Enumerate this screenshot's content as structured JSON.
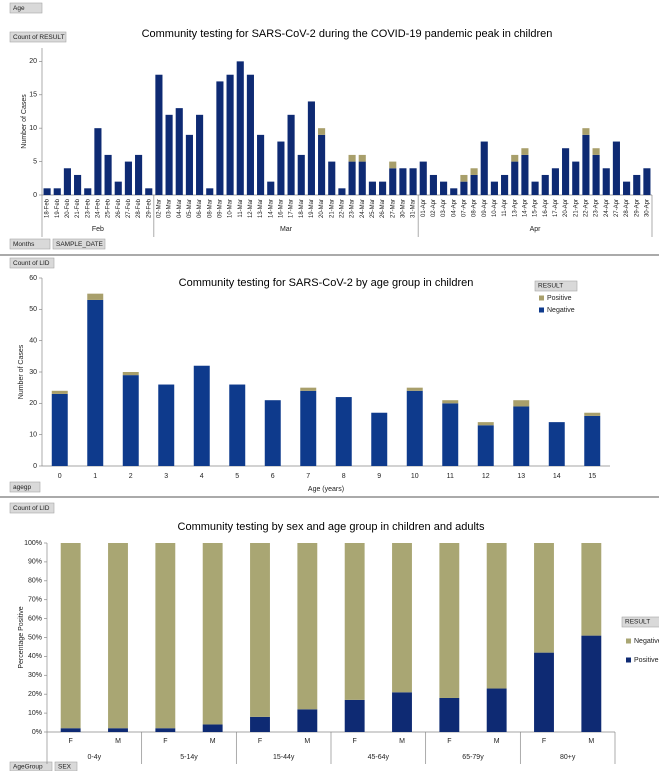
{
  "pivot_buttons": {
    "age": "Age",
    "count_result": "Count of RESULT",
    "months": "Months",
    "sample_date": "SAMPLE_DATE",
    "count_lid_1": "Count of LID",
    "agegp": "agegp",
    "count_lid_2": "Count of LID",
    "agegroup": "AgeGroup",
    "sex": "SEX"
  },
  "chart_data": [
    {
      "type": "bar",
      "stacked": true,
      "title": "Community testing for SARS-CoV-2 during the COVID-19 pandemic peak in children",
      "y_label": "Number of Cases",
      "categories": [
        "18-Feb",
        "19-Feb",
        "20-Feb",
        "21-Feb",
        "23-Feb",
        "24-Feb",
        "25-Feb",
        "26-Feb",
        "27-Feb",
        "28-Feb",
        "29-Feb",
        "02-Mar",
        "03-Mar",
        "04-Mar",
        "05-Mar",
        "06-Mar",
        "08-Mar",
        "09-Mar",
        "10-Mar",
        "11-Mar",
        "12-Mar",
        "13-Mar",
        "14-Mar",
        "16-Mar",
        "17-Mar",
        "18-Mar",
        "19-Mar",
        "20-Mar",
        "21-Mar",
        "22-Mar",
        "23-Mar",
        "24-Mar",
        "25-Mar",
        "26-Mar",
        "27-Mar",
        "30-Mar",
        "31-Mar",
        "01-Apr",
        "02-Apr",
        "03-Apr",
        "04-Apr",
        "07-Apr",
        "08-Apr",
        "09-Apr",
        "10-Apr",
        "11-Apr",
        "13-Apr",
        "14-Apr",
        "15-Apr",
        "16-Apr",
        "17-Apr",
        "20-Apr",
        "21-Apr",
        "22-Apr",
        "23-Apr",
        "24-Apr",
        "27-Apr",
        "28-Apr",
        "29-Apr",
        "30-Apr"
      ],
      "groups": [
        {
          "label": "Feb",
          "span": 11
        },
        {
          "label": "Mar",
          "span": 26
        },
        {
          "label": "Apr",
          "span": 23
        }
      ],
      "series": [
        {
          "color": "#0e2a73",
          "values": [
            1,
            1,
            4,
            3,
            1,
            10,
            6,
            2,
            5,
            6,
            1,
            18,
            12,
            13,
            9,
            12,
            1,
            17,
            18,
            20,
            18,
            9,
            2,
            8,
            12,
            6,
            14,
            9,
            5,
            1,
            5,
            5,
            2,
            2,
            4,
            4,
            4,
            5,
            3,
            2,
            1,
            2,
            3,
            8,
            2,
            3,
            5,
            6,
            2,
            3,
            4,
            7,
            5,
            9,
            6,
            4,
            8,
            2,
            3,
            4
          ]
        },
        {
          "color": "#a89f6b",
          "values": [
            0,
            0,
            0,
            0,
            0,
            0,
            0,
            0,
            0,
            0,
            0,
            0,
            0,
            0,
            0,
            0,
            0,
            0,
            0,
            0,
            0,
            0,
            0,
            0,
            0,
            0,
            0,
            1,
            0,
            0,
            1,
            1,
            0,
            0,
            1,
            0,
            0,
            0,
            0,
            0,
            0,
            1,
            1,
            0,
            0,
            0,
            1,
            1,
            0,
            0,
            0,
            0,
            0,
            1,
            1,
            0,
            0,
            0,
            0,
            0
          ]
        }
      ],
      "ylim": [
        0,
        22
      ],
      "yticks": [
        0,
        5,
        10,
        15,
        20
      ]
    },
    {
      "type": "bar",
      "stacked": true,
      "title": "Community testing for SARS-CoV-2 by age group in children",
      "y_label": "Number of Cases",
      "x_label": "Age (years)",
      "legend_title": "RESULT",
      "categories": [
        "0",
        "1",
        "2",
        "3",
        "4",
        "5",
        "6",
        "7",
        "8",
        "9",
        "10",
        "11",
        "12",
        "13",
        "14",
        "15"
      ],
      "series": [
        {
          "name": "Negative",
          "color": "#0e3a8c",
          "values": [
            23,
            53,
            29,
            26,
            32,
            26,
            21,
            24,
            22,
            17,
            24,
            20,
            13,
            19,
            14,
            16
          ]
        },
        {
          "name": "Positive",
          "color": "#a89f6b",
          "values": [
            1,
            2,
            1,
            0,
            0,
            0,
            0,
            1,
            0,
            0,
            1,
            1,
            1,
            2,
            0,
            1
          ]
        }
      ],
      "ylim": [
        0,
        60
      ],
      "yticks": [
        0,
        10,
        20,
        30,
        40,
        50,
        60
      ]
    },
    {
      "type": "bar",
      "stacked": true,
      "title": "Community testing by sex and age group in children and adults",
      "y_label": "Percentage Positive",
      "legend_title": "RESULT",
      "categories": [
        "F",
        "M",
        "F",
        "M",
        "F",
        "M",
        "F",
        "M",
        "F",
        "M",
        "F",
        "M"
      ],
      "groups": [
        {
          "label": "0-4y",
          "span": 2
        },
        {
          "label": "5-14y",
          "span": 2
        },
        {
          "label": "15-44y",
          "span": 2
        },
        {
          "label": "45-64y",
          "span": 2
        },
        {
          "label": "65-79y",
          "span": 2
        },
        {
          "label": "80+y",
          "span": 2
        }
      ],
      "series": [
        {
          "name": "Positive",
          "color": "#0e2a73",
          "values": [
            2,
            2,
            2,
            4,
            8,
            12,
            17,
            21,
            18,
            23,
            42,
            51
          ]
        },
        {
          "name": "Negative",
          "color": "#a9a673",
          "values": [
            98,
            98,
            98,
            96,
            92,
            88,
            83,
            79,
            82,
            77,
            58,
            49
          ]
        }
      ],
      "ylim": [
        0,
        100
      ],
      "yticks": [
        {
          "value": 0,
          "label": "0%"
        },
        {
          "value": 10,
          "label": "10%"
        },
        {
          "value": 20,
          "label": "20%"
        },
        {
          "value": 30,
          "label": "30%"
        },
        {
          "value": 40,
          "label": "40%"
        },
        {
          "value": 50,
          "label": "50%"
        },
        {
          "value": 60,
          "label": "60%"
        },
        {
          "value": 70,
          "label": "70%"
        },
        {
          "value": 80,
          "label": "80%"
        },
        {
          "value": 90,
          "label": "90%"
        },
        {
          "value": 100,
          "label": "100%"
        }
      ]
    }
  ]
}
